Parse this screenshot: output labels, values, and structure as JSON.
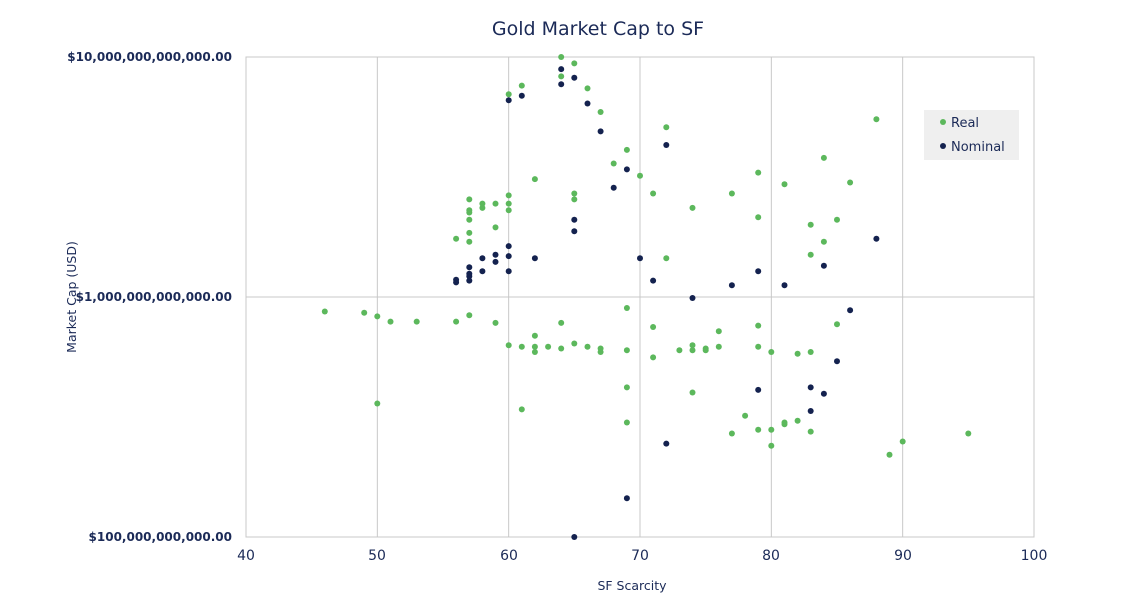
{
  "chart_data": {
    "type": "scatter",
    "title": "Gold Market Cap to SF",
    "xlabel": "SF Scarcity",
    "ylabel": "Market Cap (USD)",
    "xlim": [
      40,
      100
    ],
    "ylim": [
      100000000000,
      10000000000000
    ],
    "y_scale": "log",
    "grid": true,
    "legend_position": "top-right",
    "x_ticks": [
      "40",
      "50",
      "60",
      "70",
      "80",
      "90",
      "100"
    ],
    "y_ticks": [
      "$10,000,000,000,000.00",
      "$1,000,000,000,000.00",
      "$100,000,000,000.00"
    ],
    "series": [
      {
        "name": "Real",
        "color": "#5cb85c",
        "points": [
          [
            46,
            870000000000.0
          ],
          [
            49,
            860000000000.0
          ],
          [
            50,
            830000000000.0
          ],
          [
            50,
            360000000000.0
          ],
          [
            51,
            790000000000.0
          ],
          [
            53,
            790000000000.0
          ],
          [
            56,
            790000000000.0
          ],
          [
            56,
            1750000000000.0
          ],
          [
            57,
            840000000000.0
          ],
          [
            57,
            1700000000000.0
          ],
          [
            57,
            1850000000000.0
          ],
          [
            57,
            2100000000000.0
          ],
          [
            57,
            2250000000000.0
          ],
          [
            57,
            2300000000000.0
          ],
          [
            57,
            2550000000000.0
          ],
          [
            58,
            2350000000000.0
          ],
          [
            58,
            2450000000000.0
          ],
          [
            59,
            780000000000.0
          ],
          [
            59,
            1950000000000.0
          ],
          [
            59,
            2450000000000.0
          ],
          [
            60,
            630000000000.0
          ],
          [
            60,
            2300000000000.0
          ],
          [
            60,
            2450000000000.0
          ],
          [
            60,
            2650000000000.0
          ],
          [
            60,
            7000000000000.0
          ],
          [
            61,
            620000000000.0
          ],
          [
            61,
            340000000000.0
          ],
          [
            61,
            7600000000000.0
          ],
          [
            62,
            590000000000.0
          ],
          [
            62,
            620000000000.0
          ],
          [
            62,
            690000000000.0
          ],
          [
            62,
            3100000000000.0
          ],
          [
            63,
            620000000000.0
          ],
          [
            64,
            610000000000.0
          ],
          [
            64,
            780000000000.0
          ],
          [
            64,
            8300000000000.0
          ],
          [
            64,
            10000000000000.0
          ],
          [
            65,
            640000000000.0
          ],
          [
            65,
            2550000000000.0
          ],
          [
            65,
            2700000000000.0
          ],
          [
            65,
            9400000000000.0
          ],
          [
            66,
            620000000000.0
          ],
          [
            66,
            7400000000000.0
          ],
          [
            67,
            590000000000.0
          ],
          [
            67,
            610000000000.0
          ],
          [
            67,
            5900000000000.0
          ],
          [
            68,
            3600000000000.0
          ],
          [
            69,
            600000000000.0
          ],
          [
            69,
            900000000000.0
          ],
          [
            69,
            420000000000.0
          ],
          [
            69,
            300000000000.0
          ],
          [
            69,
            4100000000000.0
          ],
          [
            70,
            3200000000000.0
          ],
          [
            71,
            560000000000.0
          ],
          [
            71,
            750000000000.0
          ],
          [
            71,
            2700000000000.0
          ],
          [
            72,
            1450000000000.0
          ],
          [
            72,
            5100000000000.0
          ],
          [
            73,
            600000000000.0
          ],
          [
            74,
            600000000000.0
          ],
          [
            74,
            630000000000.0
          ],
          [
            74,
            400000000000.0
          ],
          [
            74,
            2350000000000.0
          ],
          [
            75,
            600000000000.0
          ],
          [
            75,
            610000000000.0
          ],
          [
            76,
            620000000000.0
          ],
          [
            76,
            720000000000.0
          ],
          [
            77,
            270000000000.0
          ],
          [
            77,
            2700000000000.0
          ],
          [
            78,
            320000000000.0
          ],
          [
            79,
            620000000000.0
          ],
          [
            79,
            760000000000.0
          ],
          [
            79,
            280000000000.0
          ],
          [
            79,
            2150000000000.0
          ],
          [
            79,
            3300000000000.0
          ],
          [
            80,
            590000000000.0
          ],
          [
            80,
            280000000000.0
          ],
          [
            80,
            240000000000.0
          ],
          [
            81,
            295000000000.0
          ],
          [
            81,
            300000000000.0
          ],
          [
            81,
            2950000000000.0
          ],
          [
            82,
            580000000000.0
          ],
          [
            82,
            305000000000.0
          ],
          [
            83,
            590000000000.0
          ],
          [
            83,
            275000000000.0
          ],
          [
            83,
            1500000000000.0
          ],
          [
            83,
            2000000000000.0
          ],
          [
            84,
            1700000000000.0
          ],
          [
            84,
            3800000000000.0
          ],
          [
            85,
            770000000000.0
          ],
          [
            85,
            2100000000000.0
          ],
          [
            86,
            3000000000000.0
          ],
          [
            88,
            5500000000000.0
          ],
          [
            89,
            220000000000.0
          ],
          [
            90,
            250000000000.0
          ],
          [
            95,
            270000000000.0
          ]
        ]
      },
      {
        "name": "Nominal",
        "color": "#14224f",
        "points": [
          [
            56,
            1150000000000.0
          ],
          [
            56,
            1180000000000.0
          ],
          [
            57,
            1170000000000.0
          ],
          [
            57,
            1220000000000.0
          ],
          [
            57,
            1250000000000.0
          ],
          [
            57,
            1330000000000.0
          ],
          [
            58,
            1280000000000.0
          ],
          [
            58,
            1450000000000.0
          ],
          [
            59,
            1400000000000.0
          ],
          [
            59,
            1500000000000.0
          ],
          [
            60,
            1280000000000.0
          ],
          [
            60,
            1480000000000.0
          ],
          [
            60,
            1630000000000.0
          ],
          [
            60,
            6600000000000.0
          ],
          [
            61,
            6900000000000.0
          ],
          [
            62,
            1450000000000.0
          ],
          [
            64,
            7700000000000.0
          ],
          [
            64,
            8900000000000.0
          ],
          [
            65,
            1880000000000.0
          ],
          [
            65,
            2100000000000.0
          ],
          [
            65,
            8200000000000.0
          ],
          [
            65,
            100000000000.0
          ],
          [
            66,
            6400000000000.0
          ],
          [
            67,
            4900000000000.0
          ],
          [
            68,
            2850000000000.0
          ],
          [
            69,
            3400000000000.0
          ],
          [
            69,
            145000000000.0
          ],
          [
            70,
            1450000000000.0
          ],
          [
            71,
            1170000000000.0
          ],
          [
            72,
            4300000000000.0
          ],
          [
            72,
            245000000000.0
          ],
          [
            74,
            990000000000.0
          ],
          [
            77,
            1120000000000.0
          ],
          [
            79,
            1280000000000.0
          ],
          [
            79,
            410000000000.0
          ],
          [
            81,
            1120000000000.0
          ],
          [
            83,
            420000000000.0
          ],
          [
            83,
            335000000000.0
          ],
          [
            84,
            1350000000000.0
          ],
          [
            84,
            395000000000.0
          ],
          [
            85,
            540000000000.0
          ],
          [
            86,
            880000000000.0
          ],
          [
            88,
            1750000000000.0
          ]
        ]
      }
    ]
  }
}
